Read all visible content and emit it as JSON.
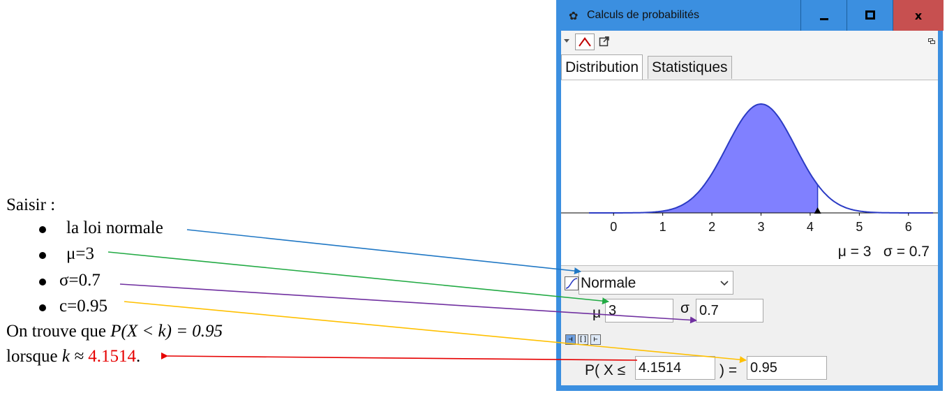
{
  "annotation": {
    "intro": "Saisir :",
    "bullets": [
      "la loi normale",
      "μ=3",
      "σ=0.7",
      "c=0.95"
    ],
    "result_line1_prefix": "On trouve que ",
    "result_line1_math": "P(X < k) = 0.95",
    "result_line2_prefix": "lorsque ",
    "result_line2_math": "k ≈ ",
    "result_value": "4.1514",
    "result_suffix": ".",
    "arrow_colors": {
      "loi": "#1f77c4",
      "mu": "#22aa44",
      "sigma": "#7030a0",
      "c": "#ffc000",
      "result": "#e60000"
    }
  },
  "window": {
    "title": "Calculs de probabilités",
    "minimize_label": "–",
    "maximize_label": "▫",
    "close_label": "x"
  },
  "toolbar": {
    "menu_icon": "triangle-down-icon",
    "distribution_icon": "bell-curve-icon",
    "export_icon": "export-icon",
    "restore_icon": "float-window-icon"
  },
  "tabs": [
    {
      "label": "Distribution",
      "active": true
    },
    {
      "label": "Statistiques",
      "active": false
    }
  ],
  "chart_data": {
    "type": "area",
    "distribution": "normal",
    "mu": 3,
    "sigma": 0.7,
    "shaded_upper_bound": 4.1514,
    "xlim": [
      -0.5,
      6.5
    ],
    "x_ticks": [
      "0",
      "1",
      "2",
      "3",
      "4",
      "5",
      "6"
    ],
    "curve_color": "#2b3bc4",
    "fill_color": "#8080ff",
    "params_label": "μ = 3   σ = 0.7"
  },
  "controls": {
    "distribution_value": "Normale",
    "mu_label": "μ",
    "mu_value": "3",
    "sigma_label": "σ",
    "sigma_value": "0.7",
    "prob_prefix": "P( X ≤",
    "prob_bound": "4.1514",
    "prob_equals": ") =",
    "prob_value": "0.95"
  }
}
